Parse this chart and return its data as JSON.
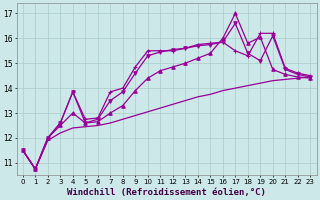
{
  "background_color": "#cce8e8",
  "grid_color": "#aacccc",
  "line_color": "#990099",
  "xlabel": "Windchill (Refroidissement éolien,°C)",
  "xlabel_fontsize": 6.5,
  "xlim": [
    -0.5,
    23.5
  ],
  "ylim": [
    10.5,
    17.4
  ],
  "yticks": [
    11,
    12,
    13,
    14,
    15,
    16,
    17
  ],
  "xticks": [
    0,
    1,
    2,
    3,
    4,
    5,
    6,
    7,
    8,
    9,
    10,
    11,
    12,
    13,
    14,
    15,
    16,
    17,
    18,
    19,
    20,
    21,
    22,
    23
  ],
  "series": [
    {
      "x": [
        0,
        1,
        2,
        3,
        4,
        5,
        6,
        7,
        8,
        9,
        10,
        11,
        12,
        13,
        14,
        15,
        16,
        17,
        18,
        19,
        20,
        21,
        22,
        23
      ],
      "y": [
        11.5,
        10.75,
        12.0,
        12.6,
        13.85,
        12.75,
        12.8,
        13.85,
        14.0,
        14.85,
        15.5,
        15.5,
        15.5,
        15.6,
        15.75,
        15.8,
        15.85,
        15.5,
        15.3,
        16.2,
        16.2,
        14.8,
        14.6,
        14.5
      ],
      "marker": "+",
      "markersize": 3,
      "linewidth": 0.9
    },
    {
      "x": [
        0,
        1,
        2,
        3,
        4,
        5,
        6,
        7,
        8,
        9,
        10,
        11,
        12,
        13,
        14,
        15,
        16,
        17,
        18,
        19,
        20,
        21,
        22,
        23
      ],
      "y": [
        11.5,
        10.75,
        12.0,
        12.6,
        13.85,
        12.6,
        12.75,
        13.5,
        13.85,
        14.6,
        15.3,
        15.45,
        15.55,
        15.6,
        15.7,
        15.75,
        15.85,
        16.6,
        15.4,
        15.1,
        16.1,
        14.75,
        14.55,
        14.45
      ],
      "marker": "v",
      "markersize": 2.5,
      "linewidth": 0.9
    },
    {
      "x": [
        0,
        1,
        2,
        3,
        4,
        5,
        6,
        7,
        8,
        9,
        10,
        11,
        12,
        13,
        14,
        15,
        16,
        17,
        18,
        19,
        20,
        21,
        22,
        23
      ],
      "y": [
        11.5,
        10.75,
        12.0,
        12.5,
        13.0,
        12.6,
        12.65,
        13.0,
        13.3,
        13.9,
        14.4,
        14.7,
        14.85,
        15.0,
        15.2,
        15.4,
        16.0,
        17.0,
        15.8,
        16.05,
        14.75,
        14.55,
        14.45,
        14.4
      ],
      "marker": "^",
      "markersize": 2.5,
      "linewidth": 0.9
    },
    {
      "x": [
        0,
        1,
        2,
        3,
        4,
        5,
        6,
        7,
        8,
        9,
        10,
        11,
        12,
        13,
        14,
        15,
        16,
        17,
        18,
        19,
        20,
        21,
        22,
        23
      ],
      "y": [
        11.5,
        10.75,
        11.9,
        12.2,
        12.4,
        12.45,
        12.5,
        12.6,
        12.75,
        12.9,
        13.05,
        13.2,
        13.35,
        13.5,
        13.65,
        13.75,
        13.9,
        14.0,
        14.1,
        14.2,
        14.3,
        14.35,
        14.4,
        14.45
      ],
      "marker": null,
      "markersize": 0,
      "linewidth": 0.9
    }
  ]
}
